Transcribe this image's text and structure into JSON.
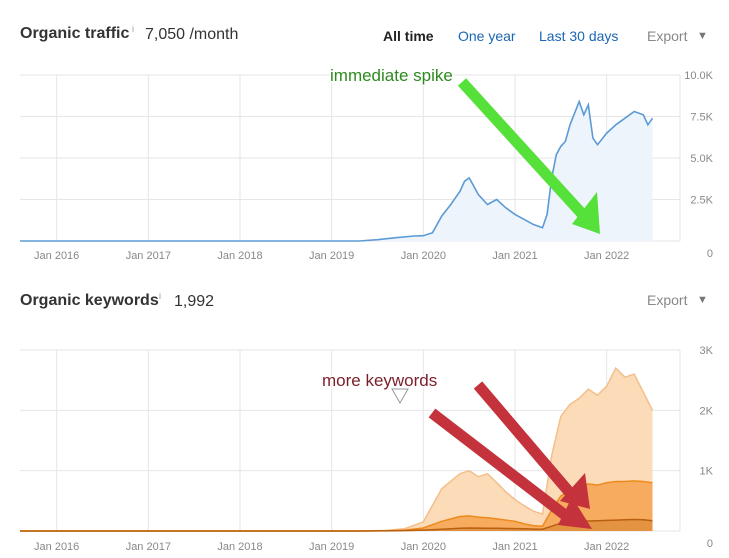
{
  "traffic": {
    "title": "Organic traffic",
    "info": "i",
    "value": "7,050 /month",
    "ranges": [
      "All time",
      "One year",
      "Last 30 days"
    ],
    "active_range": "All time",
    "export_label": "Export",
    "annotation": "immediate spike"
  },
  "keywords": {
    "title": "Organic keywords",
    "info": "i",
    "value": "1,992",
    "export_label": "Export",
    "annotation": "more keywords"
  },
  "colors": {
    "traffic_line": "#5b9bd5",
    "traffic_fill": "#eef4fc",
    "kw_light": "#fbd7b0",
    "kw_light_line": "#f3bf8a",
    "kw_mid": "#f6a24f",
    "kw_mid_line": "#ee8a1c",
    "kw_dark": "#e0903f",
    "kw_dark_line": "#b85f10",
    "green_arrow": "#55e03a",
    "red_arrow": "#c4323b"
  },
  "chart_data": [
    {
      "type": "area",
      "name": "Organic traffic",
      "x_ticks": [
        "Jan 2016",
        "Jan 2017",
        "Jan 2018",
        "Jan 2019",
        "Jan 2020",
        "Jan 2021",
        "Jan 2022"
      ],
      "y_ticks": [
        "0",
        "2.5K",
        "5.0K",
        "7.5K",
        "10.0K"
      ],
      "ylim": [
        0,
        10000
      ],
      "xlim": [
        2015.6,
        2022.8
      ],
      "grid": true,
      "x": [
        2015.6,
        2019.3,
        2019.5,
        2019.7,
        2019.9,
        2020.0,
        2020.1,
        2020.2,
        2020.3,
        2020.4,
        2020.45,
        2020.5,
        2020.55,
        2020.6,
        2020.7,
        2020.8,
        2020.9,
        2021.0,
        2021.1,
        2021.2,
        2021.3,
        2021.35,
        2021.4,
        2021.45,
        2021.5,
        2021.55,
        2021.6,
        2021.7,
        2021.75,
        2021.8,
        2021.85,
        2021.9,
        2022.0,
        2022.1,
        2022.2,
        2022.3,
        2022.4,
        2022.45,
        2022.5
      ],
      "values": [
        0,
        0,
        80,
        200,
        300,
        320,
        500,
        1500,
        2200,
        3000,
        3600,
        3800,
        3300,
        2800,
        2200,
        2500,
        2000,
        1600,
        1300,
        1000,
        800,
        1600,
        3800,
        5200,
        5700,
        6000,
        7000,
        8400,
        7600,
        8200,
        6200,
        5800,
        6500,
        7000,
        7400,
        7800,
        7600,
        7000,
        7400
      ]
    },
    {
      "type": "area",
      "name": "Organic keywords",
      "x_ticks": [
        "Jan 2016",
        "Jan 2017",
        "Jan 2018",
        "Jan 2019",
        "Jan 2020",
        "Jan 2021",
        "Jan 2022"
      ],
      "y_ticks": [
        "0",
        "1K",
        "2K",
        "3K"
      ],
      "ylim": [
        0,
        3000
      ],
      "xlim": [
        2015.6,
        2022.8
      ],
      "grid": true,
      "x": [
        2015.6,
        2019.3,
        2019.6,
        2019.8,
        2020.0,
        2020.2,
        2020.4,
        2020.5,
        2020.6,
        2020.7,
        2020.8,
        2020.9,
        2021.0,
        2021.1,
        2021.2,
        2021.3,
        2021.4,
        2021.5,
        2021.6,
        2021.7,
        2021.8,
        2021.9,
        2022.0,
        2022.1,
        2022.2,
        2022.3,
        2022.4,
        2022.5
      ],
      "series": [
        {
          "values": [
            0,
            0,
            10,
            40,
            150,
            700,
            950,
            1000,
            900,
            950,
            800,
            650,
            520,
            420,
            330,
            280,
            1250,
            1900,
            2100,
            2200,
            2350,
            2250,
            2400,
            2700,
            2550,
            2600,
            2300,
            2000
          ]
        },
        {
          "values": [
            0,
            0,
            5,
            15,
            50,
            160,
            240,
            250,
            230,
            220,
            200,
            180,
            160,
            120,
            90,
            80,
            350,
            580,
            680,
            720,
            780,
            760,
            800,
            820,
            820,
            830,
            820,
            800
          ]
        },
        {
          "values": [
            0,
            0,
            2,
            6,
            15,
            30,
            45,
            50,
            48,
            46,
            44,
            42,
            40,
            36,
            32,
            30,
            80,
            130,
            150,
            160,
            165,
            170,
            175,
            180,
            185,
            190,
            185,
            170
          ]
        }
      ]
    }
  ]
}
